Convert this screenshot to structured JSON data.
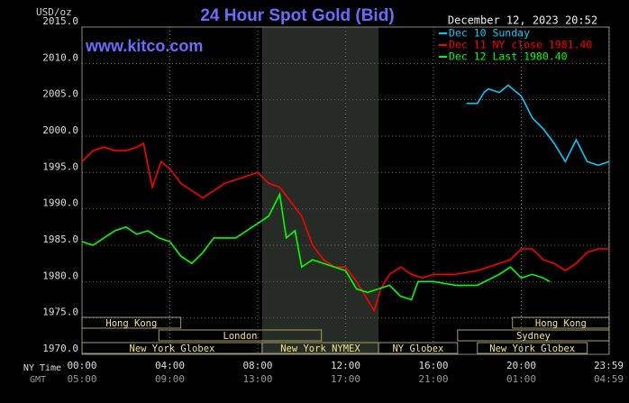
{
  "chart_data": {
    "type": "line",
    "title": "24 Hour Spot Gold (Bid)",
    "unit_label": "USD/oz",
    "watermark": "www.kitco.com",
    "timestamp": "December 12, 2023 20:52",
    "xlim": [
      0,
      24
    ],
    "ylim": [
      1970,
      2015
    ],
    "yticks": [
      {
        "value": 2015,
        "label": "2015.0"
      },
      {
        "value": 2010,
        "label": "2010.0"
      },
      {
        "value": 2005,
        "label": "2005.0"
      },
      {
        "value": 2000,
        "label": "2000.0"
      },
      {
        "value": 1995,
        "label": "1995.0"
      },
      {
        "value": 1990,
        "label": "1990.0"
      },
      {
        "value": 1985,
        "label": "1985.0"
      },
      {
        "value": 1980,
        "label": "1980.0"
      },
      {
        "value": 1975,
        "label": "1975.0"
      },
      {
        "value": 1970,
        "label": "1970.0"
      }
    ],
    "xticks": [
      {
        "value": 0,
        "label": "00:00"
      },
      {
        "value": 4,
        "label": "04:00"
      },
      {
        "value": 8,
        "label": "08:00"
      },
      {
        "value": 12,
        "label": "12:00"
      },
      {
        "value": 16,
        "label": "16:00"
      },
      {
        "value": 20,
        "label": "20:00"
      },
      {
        "value": 23.98,
        "label": "23:59"
      }
    ],
    "gmt_labels": [
      "05:00",
      "09:00",
      "13:00",
      "17:00",
      "21:00",
      "01:00",
      "04:59"
    ],
    "x_row_labels": [
      "NY Time",
      "GMT"
    ],
    "grid": true,
    "sessions": [
      {
        "name": "Hong Kong",
        "start": 0,
        "end": 4.5
      },
      {
        "name": "London",
        "start": 3.5,
        "end": 10.9
      },
      {
        "name": "New York Globex",
        "start": 0,
        "end": 8.2
      },
      {
        "name": "New York NYMEX",
        "start": 8.2,
        "end": 13.5
      },
      {
        "name": "NY Globex",
        "start": 13.5,
        "end": 17.1
      },
      {
        "name": "Sydney",
        "start": 17.1,
        "end": 24
      },
      {
        "name": "Hong Kong",
        "start": 19.6,
        "end": 24
      },
      {
        "name": "New York Globex",
        "start": 18,
        "end": 23
      }
    ],
    "series": [
      {
        "name": "Dec 10 Sunday",
        "color": "#00ccff",
        "x": [
          17.5,
          18,
          18.3,
          18.5,
          19,
          19.4,
          20,
          20.5,
          21,
          21.5,
          22,
          22.5,
          23,
          23.5,
          24
        ],
        "values": [
          2004.5,
          2004.5,
          2006,
          2006.5,
          2006,
          2007,
          2005.5,
          2002.5,
          2001,
          1999,
          1996.5,
          1999.5,
          1996.5,
          1996,
          1996.5
        ]
      },
      {
        "name": "Dec 11 NY close 1981.40",
        "color": "#ff0000",
        "x": [
          0,
          0.5,
          1,
          1.5,
          2,
          2.5,
          2.8,
          3,
          3.2,
          3.6,
          4,
          4.5,
          5,
          5.5,
          6,
          6.5,
          7,
          7.5,
          8,
          8.5,
          9,
          9.5,
          10,
          10.5,
          11,
          11.5,
          12,
          12.5,
          13,
          13.3,
          13.6,
          14,
          14.5,
          15,
          15.5,
          16,
          17,
          18,
          18.5,
          19,
          19.5,
          20,
          20.5,
          21,
          21.5,
          22,
          22.5,
          23,
          23.5,
          24
        ],
        "values": [
          1996.5,
          1998,
          1998.5,
          1998,
          1998,
          1998.5,
          1999,
          1996,
          1993,
          1996.5,
          1995.5,
          1993.5,
          1992.5,
          1991.5,
          1992.5,
          1993.5,
          1994,
          1994.5,
          1995,
          1993.5,
          1993,
          1991,
          1989,
          1985,
          1983,
          1982,
          1982,
          1980,
          1977.5,
          1976,
          1979,
          1981,
          1982,
          1981,
          1980.5,
          1981,
          1981,
          1981.5,
          1982,
          1982.5,
          1983,
          1984.5,
          1984.5,
          1983,
          1982.5,
          1981.5,
          1982.5,
          1984,
          1984.5,
          1984.5
        ]
      },
      {
        "name": "Dec 12 Last 1980.40",
        "color": "#00ff00",
        "x": [
          0,
          0.5,
          1,
          1.5,
          2,
          2.5,
          3,
          3.5,
          4,
          4.5,
          5,
          5.5,
          6,
          7,
          7.5,
          8,
          8.5,
          9,
          9.3,
          9.7,
          10,
          10.5,
          11,
          11.5,
          12,
          12.5,
          13,
          13.5,
          14,
          14.5,
          15,
          15.3,
          16,
          17,
          18,
          19,
          19.5,
          20,
          20.5,
          21,
          21.3
        ],
        "values": [
          1985.5,
          1985,
          1986,
          1987,
          1987.5,
          1986.5,
          1987,
          1986,
          1985.5,
          1983.5,
          1982.5,
          1984,
          1986,
          1986,
          1987,
          1988,
          1989,
          1992,
          1986,
          1987,
          1982,
          1983,
          1982.5,
          1982,
          1981.5,
          1979,
          1978.5,
          1979,
          1979.5,
          1978,
          1977.5,
          1980,
          1980,
          1979.5,
          1979.5,
          1981,
          1982,
          1980.5,
          1981,
          1980.5,
          1980
        ]
      }
    ]
  }
}
